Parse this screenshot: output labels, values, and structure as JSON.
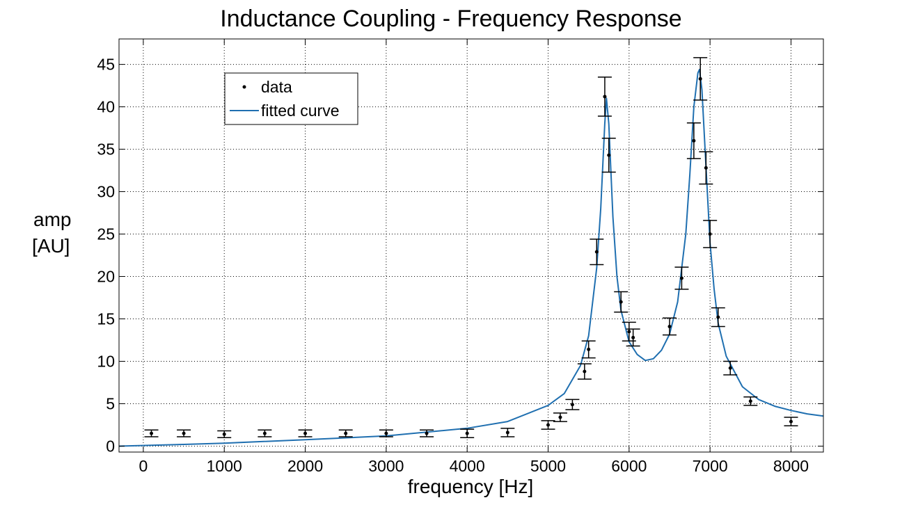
{
  "chart_data": {
    "type": "scatter",
    "title": "Inductance Coupling - Frequency Response",
    "xlabel": "frequency [Hz]",
    "ylabel_lines": [
      "amp",
      "[AU]"
    ],
    "xlim": [
      -300,
      8400
    ],
    "ylim": [
      -0.7,
      48
    ],
    "xticks": [
      0,
      1000,
      2000,
      3000,
      4000,
      5000,
      6000,
      7000,
      8000
    ],
    "yticks": [
      0,
      5,
      10,
      15,
      20,
      25,
      30,
      35,
      40,
      45
    ],
    "grid": true,
    "legend_position": "top-left",
    "legend": {
      "data": "data",
      "fit": "fitted curve"
    },
    "colors": {
      "data": "#000000",
      "fit": "#1f6fb0"
    },
    "series": [
      {
        "name": "data",
        "kind": "points_with_errorbars",
        "points": [
          {
            "x": 100,
            "y": 1.5,
            "err": 0.4
          },
          {
            "x": 500,
            "y": 1.5,
            "err": 0.4
          },
          {
            "x": 1000,
            "y": 1.4,
            "err": 0.4
          },
          {
            "x": 1500,
            "y": 1.5,
            "err": 0.4
          },
          {
            "x": 2000,
            "y": 1.5,
            "err": 0.4
          },
          {
            "x": 2500,
            "y": 1.5,
            "err": 0.4
          },
          {
            "x": 3000,
            "y": 1.5,
            "err": 0.4
          },
          {
            "x": 3500,
            "y": 1.5,
            "err": 0.4
          },
          {
            "x": 4000,
            "y": 1.5,
            "err": 0.5
          },
          {
            "x": 4500,
            "y": 1.6,
            "err": 0.5
          },
          {
            "x": 5000,
            "y": 2.5,
            "err": 0.5
          },
          {
            "x": 5150,
            "y": 3.4,
            "err": 0.5
          },
          {
            "x": 5300,
            "y": 4.9,
            "err": 0.6
          },
          {
            "x": 5450,
            "y": 8.8,
            "err": 0.9
          },
          {
            "x": 5500,
            "y": 11.4,
            "err": 1.0
          },
          {
            "x": 5600,
            "y": 22.9,
            "err": 1.5
          },
          {
            "x": 5700,
            "y": 41.2,
            "err": 2.3
          },
          {
            "x": 5750,
            "y": 34.3,
            "err": 2.0
          },
          {
            "x": 5900,
            "y": 17.0,
            "err": 1.2
          },
          {
            "x": 6000,
            "y": 13.5,
            "err": 1.1
          },
          {
            "x": 6050,
            "y": 12.8,
            "err": 1.0
          },
          {
            "x": 6500,
            "y": 14.1,
            "err": 1.0
          },
          {
            "x": 6650,
            "y": 19.8,
            "err": 1.3
          },
          {
            "x": 6800,
            "y": 36.0,
            "err": 2.1
          },
          {
            "x": 6880,
            "y": 43.3,
            "err": 2.5
          },
          {
            "x": 6950,
            "y": 32.8,
            "err": 1.9
          },
          {
            "x": 7000,
            "y": 25.0,
            "err": 1.6
          },
          {
            "x": 7100,
            "y": 15.2,
            "err": 1.1
          },
          {
            "x": 7250,
            "y": 9.2,
            "err": 0.8
          },
          {
            "x": 7500,
            "y": 5.3,
            "err": 0.5
          },
          {
            "x": 8000,
            "y": 2.9,
            "err": 0.5
          }
        ]
      },
      {
        "name": "fitted curve",
        "kind": "line",
        "x": [
          -300,
          500,
          1000,
          2000,
          3000,
          4000,
          4500,
          5000,
          5200,
          5400,
          5500,
          5600,
          5650,
          5700,
          5720,
          5750,
          5800,
          5850,
          5900,
          6000,
          6100,
          6200,
          6300,
          6400,
          6500,
          6600,
          6700,
          6750,
          6800,
          6850,
          6870,
          6900,
          6950,
          7000,
          7050,
          7100,
          7200,
          7400,
          7600,
          7800,
          8000,
          8200,
          8400
        ],
        "y": [
          0.0,
          0.2,
          0.35,
          0.75,
          1.2,
          2.1,
          2.9,
          4.8,
          6.2,
          9.5,
          13.0,
          21.0,
          28.0,
          38.0,
          41.0,
          38.0,
          27.0,
          20.0,
          16.0,
          12.3,
          10.8,
          10.1,
          10.3,
          11.3,
          13.2,
          17.0,
          25.0,
          32.0,
          40.0,
          44.0,
          44.4,
          42.0,
          33.0,
          24.0,
          18.5,
          14.5,
          10.6,
          7.0,
          5.5,
          4.7,
          4.2,
          3.8,
          3.55
        ]
      }
    ]
  }
}
